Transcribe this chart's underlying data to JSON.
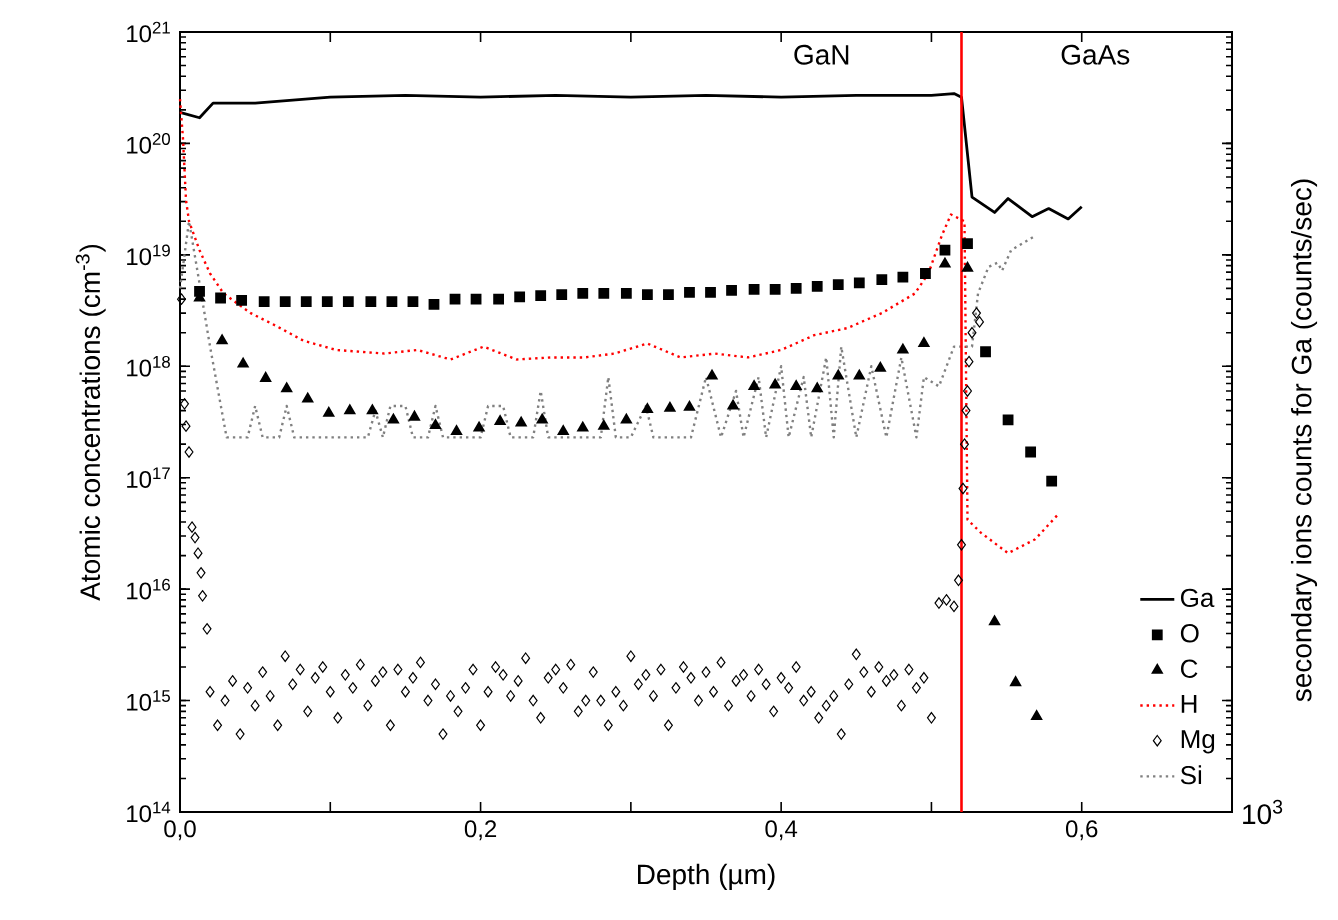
{
  "chart_data": {
    "type": "scatter",
    "xlabel": "Depth (µm)",
    "ylabel": "Atomic concentrations (cm$^{-3}$)",
    "y2label": "secondary ions counts for Ga (counts/sec)",
    "annotations": [
      "GaN",
      "GaAs",
      "10$^{3}$"
    ],
    "log": "y",
    "xlim": [
      0,
      0.7
    ],
    "ylim": [
      100000000000000.0,
      1e+21
    ],
    "xticks": [
      {
        "value": 0,
        "label": "0,0"
      },
      {
        "value": 0.1,
        "label": null
      },
      {
        "value": 0.2,
        "label": "0,2"
      },
      {
        "value": 0.3,
        "label": null
      },
      {
        "value": 0.4,
        "label": "0,4"
      },
      {
        "value": 0.5,
        "label": null
      },
      {
        "value": 0.6,
        "label": "0,6"
      }
    ],
    "yticks": [
      {
        "value": 100000000000000.0,
        "label": "10$^{14}$"
      },
      {
        "value": 1000000000000000.0,
        "label": "10$^{15}$"
      },
      {
        "value": 1e+16,
        "label": "10$^{16}$"
      },
      {
        "value": 1e+17,
        "label": "10$^{17}$"
      },
      {
        "value": 1e+18,
        "label": "10$^{18}$"
      },
      {
        "value": 1e+19,
        "label": "10$^{19}$"
      },
      {
        "value": 1e+20,
        "label": "10$^{20}$"
      },
      {
        "value": 1e+21,
        "label": "10$^{21}$"
      }
    ],
    "legend": "bottom right",
    "ref_lines": [
      {
        "axis": "x",
        "value": 0.52,
        "label": null,
        "color": "#ff0000"
      }
    ],
    "series": [
      {
        "name": "Ga",
        "type": "line",
        "marker": "none",
        "line_style": "solid",
        "color": "#000000",
        "x": [
          0,
          0.013,
          0.022,
          0.05,
          0.1,
          0.15,
          0.2,
          0.25,
          0.3,
          0.35,
          0.4,
          0.45,
          0.5,
          0.515,
          0.52,
          0.527,
          0.542,
          0.551,
          0.567,
          0.578,
          0.591,
          0.6
        ],
        "values": [
          1.9e+20,
          1.7e+20,
          2.3e+20,
          2.3e+20,
          2.6e+20,
          2.7e+20,
          2.6e+20,
          2.7e+20,
          2.6e+20,
          2.7e+20,
          2.6e+20,
          2.7e+20,
          2.7e+20,
          2.8e+20,
          2.6e+20,
          3.3e+19,
          2.4e+19,
          3.2e+19,
          2.2e+19,
          2.6e+19,
          2.1e+19,
          2.7e+19
        ]
      },
      {
        "name": "O",
        "marker": "square",
        "color": "#000000",
        "x": [
          0.013,
          0.027,
          0.041,
          0.056,
          0.07,
          0.084,
          0.098,
          0.112,
          0.127,
          0.141,
          0.155,
          0.169,
          0.183,
          0.197,
          0.212,
          0.226,
          0.24,
          0.254,
          0.268,
          0.282,
          0.297,
          0.311,
          0.325,
          0.339,
          0.353,
          0.367,
          0.382,
          0.396,
          0.41,
          0.424,
          0.438,
          0.452,
          0.467,
          0.481,
          0.496,
          0.509,
          0.524,
          0.536,
          0.551,
          0.566,
          0.58
        ],
        "values": [
          4.7e+18,
          4.1e+18,
          3.9e+18,
          3.8e+18,
          3.8e+18,
          3.8e+18,
          3.8e+18,
          3.8e+18,
          3.8e+18,
          3.8e+18,
          3.8e+18,
          3.6e+18,
          4e+18,
          4e+18,
          4e+18,
          4.2e+18,
          4.3e+18,
          4.4e+18,
          4.5e+18,
          4.5e+18,
          4.5e+18,
          4.4e+18,
          4.4e+18,
          4.6e+18,
          4.6e+18,
          4.8e+18,
          4.9e+18,
          4.9e+18,
          5e+18,
          5.2e+18,
          5.4e+18,
          5.6e+18,
          6e+18,
          6.3e+18,
          6.8e+18,
          1.1e+19,
          1.26e+19,
          1.35e+18,
          3.3e+17,
          1.7e+17,
          9.3e+16
        ]
      },
      {
        "name": "C",
        "marker": "triangle",
        "color": "#000000",
        "x": [
          0.013,
          0.028,
          0.042,
          0.057,
          0.071,
          0.085,
          0.099,
          0.113,
          0.128,
          0.142,
          0.156,
          0.17,
          0.184,
          0.199,
          0.213,
          0.227,
          0.241,
          0.255,
          0.268,
          0.282,
          0.297,
          0.311,
          0.326,
          0.339,
          0.354,
          0.368,
          0.382,
          0.396,
          0.41,
          0.424,
          0.438,
          0.452,
          0.466,
          0.481,
          0.495,
          0.509,
          0.524,
          0.542,
          0.556,
          0.57
        ],
        "values": [
          4.1e+18,
          1.7e+18,
          1.05e+18,
          7.8e+17,
          6.3e+17,
          5.1e+17,
          3.8e+17,
          4e+17,
          4e+17,
          3.3e+17,
          3.5e+17,
          2.95e+17,
          2.6e+17,
          2.8e+17,
          3.2e+17,
          3.1e+17,
          3.3e+17,
          2.6e+17,
          2.8e+17,
          2.9e+17,
          3.3e+17,
          4.1e+17,
          4.2e+17,
          4.3e+17,
          8.2e+17,
          4.4e+17,
          6.6e+17,
          6.8e+17,
          6.6e+17,
          6.3e+17,
          8.2e+17,
          8.2e+17,
          9.6e+17,
          1.4e+18,
          1.6e+18,
          8.3e+18,
          7.6e+18,
          5100000000000000.0,
          1450000000000000.0,
          720000000000000.0
        ]
      },
      {
        "name": "H",
        "type": "line",
        "marker": "none",
        "line_style": "dotted",
        "color": "#ff0000",
        "x": [
          0,
          0.002,
          0.004,
          0.006,
          0.013,
          0.02,
          0.029,
          0.047,
          0.064,
          0.082,
          0.104,
          0.136,
          0.158,
          0.18,
          0.202,
          0.224,
          0.247,
          0.269,
          0.289,
          0.311,
          0.333,
          0.356,
          0.378,
          0.4,
          0.422,
          0.444,
          0.467,
          0.489,
          0.498,
          0.507,
          0.513,
          0.522,
          0.524,
          0.533,
          0.551,
          0.569,
          0.585
        ],
        "values": [
          2.5e+20,
          1.1e+20,
          3.1e+19,
          2e+19,
          1.1e+19,
          6.8e+18,
          4.5e+18,
          3e+18,
          2.3e+18,
          1.7e+18,
          1.4e+18,
          1.3e+18,
          1.4e+18,
          1.15e+18,
          1.5e+18,
          1.15e+18,
          1.2e+18,
          1.2e+18,
          1.3e+18,
          1.6e+18,
          1.2e+18,
          1.3e+18,
          1.2e+18,
          1.4e+18,
          1.9e+18,
          2.2e+18,
          3e+18,
          4.5e+18,
          6.8e+18,
          1.5e+19,
          2.3e+19,
          2e+19,
          4.2e+16,
          3.2e+16,
          2.1e+16,
          2.8e+16,
          4.8e+16
        ]
      },
      {
        "name": "Mg",
        "marker": "diamond",
        "color": "#000000",
        "x": [
          0.001,
          0.003,
          0.004,
          0.006,
          0.008,
          0.01,
          0.012,
          0.014,
          0.015,
          0.018,
          0.02,
          0.025,
          0.03,
          0.035,
          0.04,
          0.045,
          0.05,
          0.055,
          0.06,
          0.065,
          0.07,
          0.075,
          0.08,
          0.085,
          0.09,
          0.095,
          0.1,
          0.105,
          0.11,
          0.115,
          0.12,
          0.125,
          0.13,
          0.135,
          0.14,
          0.145,
          0.15,
          0.155,
          0.16,
          0.165,
          0.17,
          0.175,
          0.18,
          0.185,
          0.19,
          0.195,
          0.2,
          0.205,
          0.21,
          0.215,
          0.22,
          0.225,
          0.23,
          0.235,
          0.24,
          0.245,
          0.25,
          0.255,
          0.26,
          0.265,
          0.27,
          0.275,
          0.28,
          0.285,
          0.29,
          0.295,
          0.3,
          0.305,
          0.31,
          0.315,
          0.32,
          0.325,
          0.33,
          0.335,
          0.34,
          0.345,
          0.35,
          0.355,
          0.36,
          0.365,
          0.37,
          0.375,
          0.38,
          0.385,
          0.39,
          0.395,
          0.4,
          0.405,
          0.41,
          0.415,
          0.42,
          0.425,
          0.43,
          0.435,
          0.44,
          0.445,
          0.45,
          0.455,
          0.46,
          0.465,
          0.47,
          0.475,
          0.48,
          0.485,
          0.49,
          0.495,
          0.5,
          0.505,
          0.51,
          0.515,
          0.518,
          0.52,
          0.521,
          0.522,
          0.523,
          0.524,
          0.525,
          0.527,
          0.53,
          0.532
        ],
        "values": [
          4e+18,
          4.6e+17,
          2.9e+17,
          1.7e+17,
          3.6e+16,
          2.9e+16,
          2.1e+16,
          1.4e+16,
          8700000000000000.0,
          4400000000000000.0,
          1200000000000000.0,
          600000000000000.0,
          1000000000000000.0,
          1500000000000000.0,
          500000000000000.0,
          1300000000000000.0,
          900000000000000.0,
          1800000000000000.0,
          1100000000000000.0,
          600000000000000.0,
          2500000000000000.0,
          1400000000000000.0,
          1900000000000000.0,
          800000000000000.0,
          1600000000000000.0,
          2000000000000000.0,
          1200000000000000.0,
          700000000000000.0,
          1700000000000000.0,
          1300000000000000.0,
          2100000000000000.0,
          900000000000000.0,
          1500000000000000.0,
          1800000000000000.0,
          600000000000000.0,
          1900000000000000.0,
          1200000000000000.0,
          1600000000000000.0,
          2200000000000000.0,
          1000000000000000.0,
          1400000000000000.0,
          500000000000000.0,
          1100000000000000.0,
          800000000000000.0,
          1300000000000000.0,
          1900000000000000.0,
          600000000000000.0,
          1200000000000000.0,
          2000000000000000.0,
          1700000000000000.0,
          1100000000000000.0,
          1500000000000000.0,
          2400000000000000.0,
          1000000000000000.0,
          700000000000000.0,
          1600000000000000.0,
          1900000000000000.0,
          1300000000000000.0,
          2100000000000000.0,
          800000000000000.0,
          1000000000000000.0,
          1800000000000000.0,
          1000000000000000.0,
          600000000000000.0,
          1200000000000000.0,
          900000000000000.0,
          2500000000000000.0,
          1400000000000000.0,
          1700000000000000.0,
          1100000000000000.0,
          1900000000000000.0,
          600000000000000.0,
          1300000000000000.0,
          2000000000000000.0,
          1600000000000000.0,
          1000000000000000.0,
          1800000000000000.0,
          1200000000000000.0,
          2200000000000000.0,
          900000000000000.0,
          1500000000000000.0,
          1700000000000000.0,
          1100000000000000.0,
          1900000000000000.0,
          1400000000000000.0,
          800000000000000.0,
          1600000000000000.0,
          1300000000000000.0,
          2000000000000000.0,
          1000000000000000.0,
          1200000000000000.0,
          700000000000000.0,
          900000000000000.0,
          1100000000000000.0,
          500000000000000.0,
          1400000000000000.0,
          2600000000000000.0,
          1800000000000000.0,
          1200000000000000.0,
          2000000000000000.0,
          1500000000000000.0,
          1700000000000000.0,
          900000000000000.0,
          1900000000000000.0,
          1300000000000000.0,
          1600000000000000.0,
          700000000000000.0,
          7500000000000000.0,
          8000000000000000.0,
          7000000000000000.0,
          1.2e+16,
          2.5e+16,
          8e+16,
          2e+17,
          4e+17,
          6e+17,
          1.1e+18,
          2e+18,
          3e+18,
          2.5e+18
        ]
      },
      {
        "name": "Si",
        "type": "line",
        "marker": "none",
        "line_style": "dotted",
        "color": "#808080",
        "x": [
          0,
          0.006,
          0.011,
          0.02,
          0.031,
          0.045,
          0.05,
          0.055,
          0.066,
          0.071,
          0.076,
          0.125,
          0.13,
          0.135,
          0.14,
          0.15,
          0.155,
          0.165,
          0.17,
          0.175,
          0.2,
          0.205,
          0.215,
          0.22,
          0.235,
          0.24,
          0.245,
          0.28,
          0.285,
          0.29,
          0.3,
          0.31,
          0.315,
          0.34,
          0.35,
          0.36,
          0.37,
          0.375,
          0.385,
          0.39,
          0.4,
          0.405,
          0.415,
          0.42,
          0.43,
          0.435,
          0.44,
          0.45,
          0.46,
          0.47,
          0.48,
          0.49,
          0.495,
          0.505,
          0.515,
          0.527,
          0.531,
          0.538,
          0.544,
          0.547,
          0.553,
          0.568
        ],
        "values": [
          5e+18,
          2e+19,
          8e+18,
          1.5e+18,
          2.3e+17,
          2.3e+17,
          4.4e+17,
          2.3e+17,
          2.3e+17,
          4.4e+17,
          2.3e+17,
          2.3e+17,
          4e+17,
          2.3e+17,
          4.4e+17,
          4.4e+17,
          2.3e+17,
          2.3e+17,
          4.4e+17,
          2.3e+17,
          2.3e+17,
          4.4e+17,
          4.4e+17,
          2.3e+17,
          2.3e+17,
          6e+17,
          2.3e+17,
          2.3e+17,
          8e+17,
          2.3e+17,
          2.3e+17,
          4.4e+17,
          2.3e+17,
          2.3e+17,
          8e+17,
          2.3e+17,
          6e+17,
          2.3e+17,
          8e+17,
          2.3e+17,
          1e+18,
          2.3e+17,
          8e+17,
          2.3e+17,
          1.2e+18,
          2.3e+17,
          1.5e+18,
          2.3e+17,
          1e+18,
          2.3e+17,
          1.2e+18,
          2.3e+17,
          8e+17,
          6.6e+17,
          1.5e+18,
          1.5e+18,
          4.5e+18,
          7.8e+18,
          8.5e+18,
          7.2e+18,
          1.1e+19,
          1.45e+19
        ]
      }
    ]
  }
}
